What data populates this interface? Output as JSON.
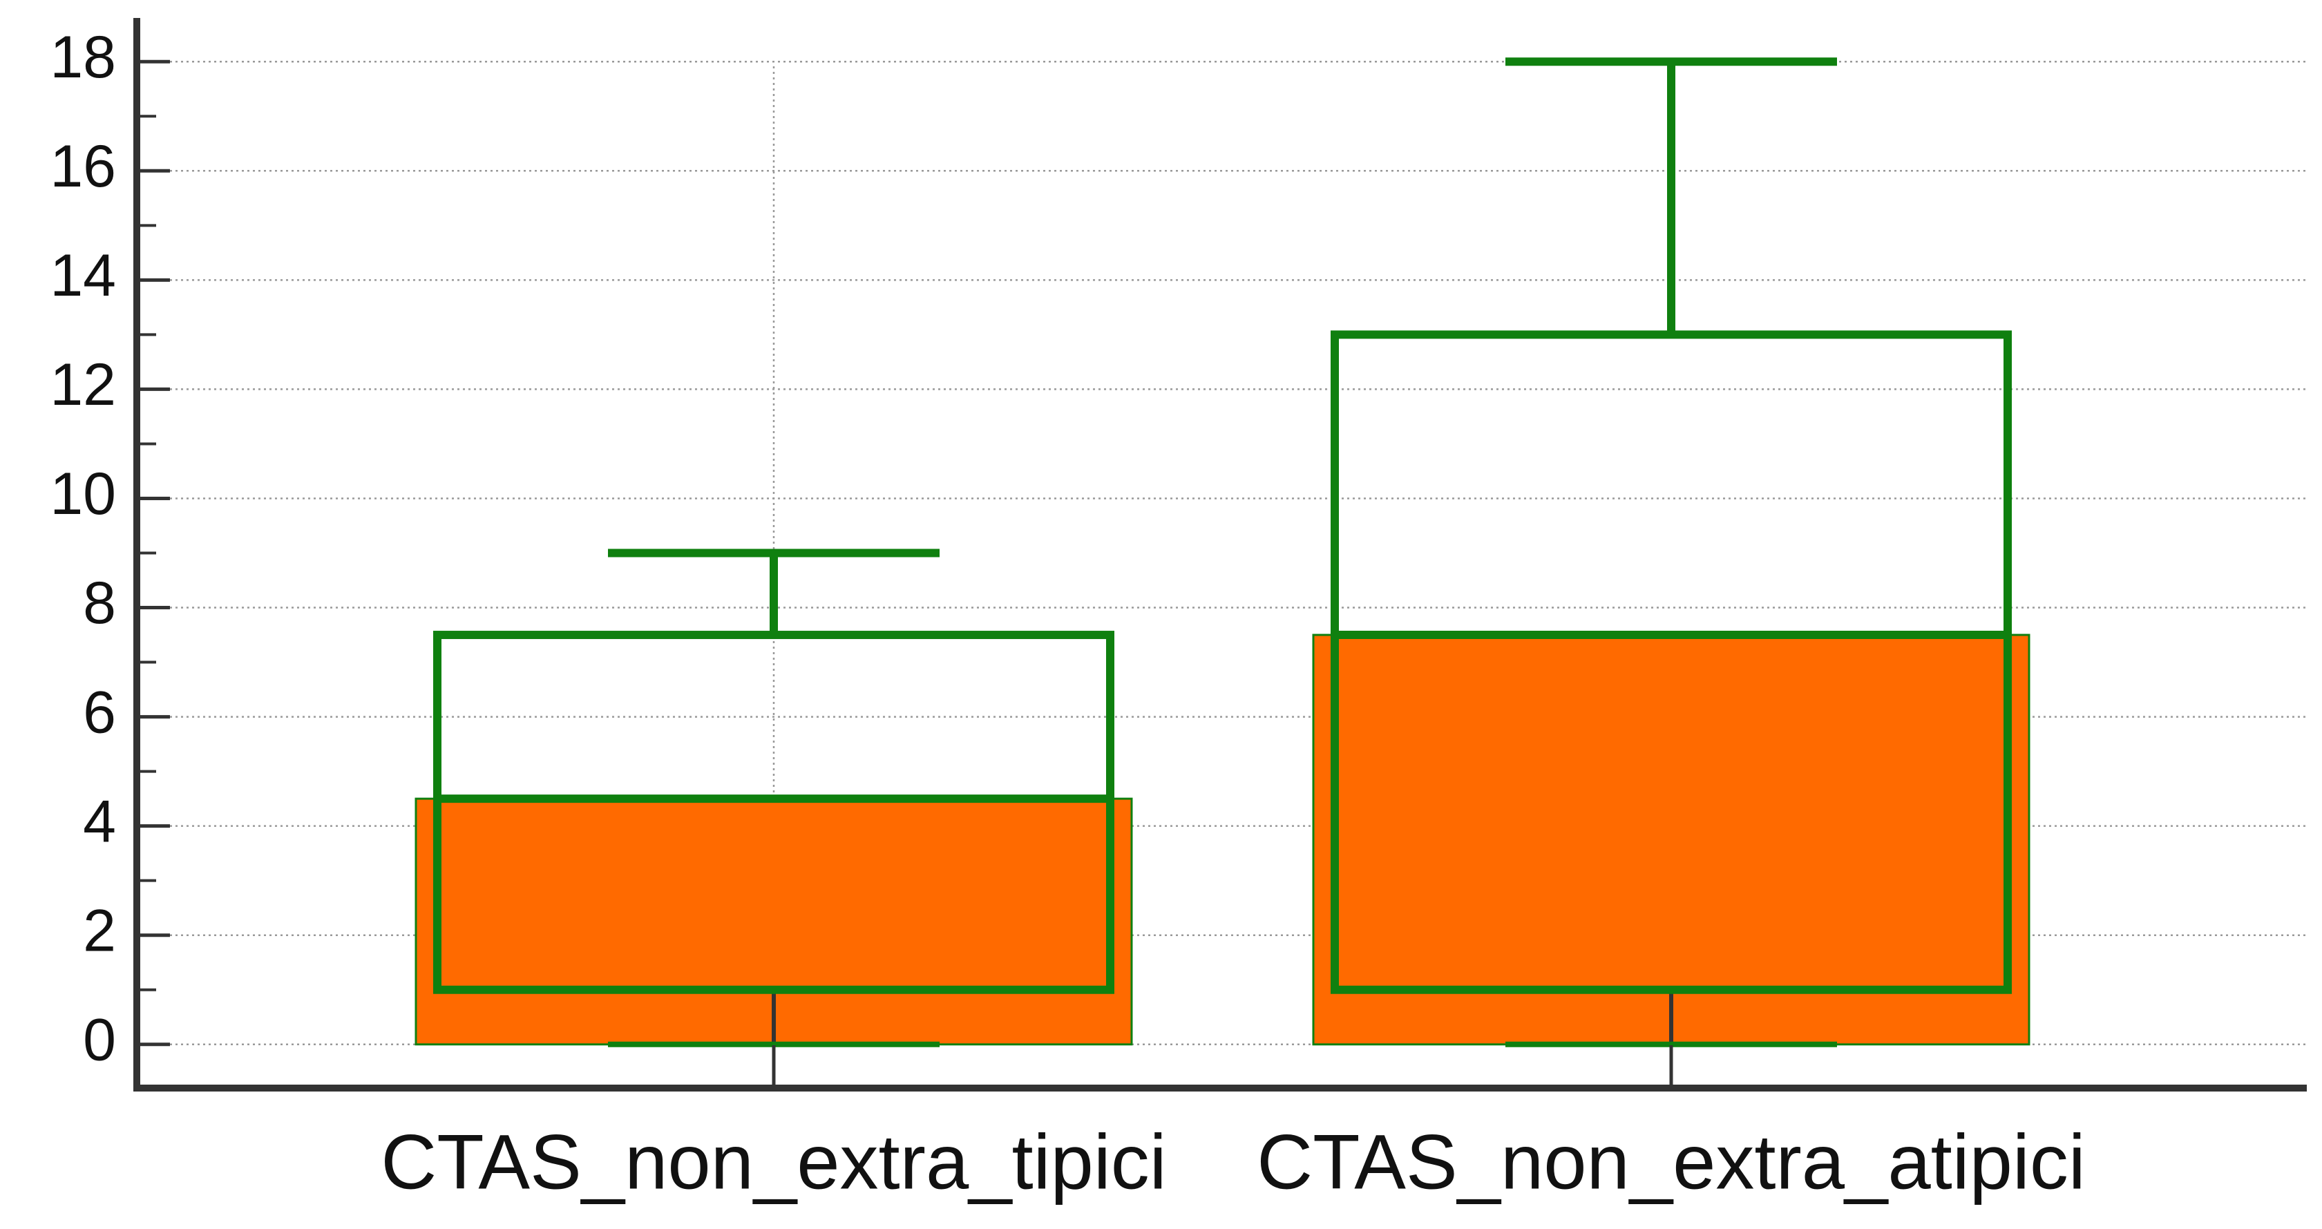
{
  "chart_data": {
    "type": "box",
    "categories": [
      "CTAS_non_extra_tipici",
      "CTAS_non_extra_atipici"
    ],
    "boxes": [
      {
        "min": 0,
        "q1": 1,
        "median": 4.5,
        "q3": 7.5,
        "max": 9
      },
      {
        "min": 0,
        "q1": 1,
        "median": 7.5,
        "q3": 13,
        "max": 18
      }
    ],
    "bar_values": [
      4.5,
      7.5
    ],
    "bar_color": "#ff6a00",
    "box_color": "#0f800f",
    "ylim": [
      -0.8,
      18.8
    ],
    "yticks": [
      0,
      2,
      4,
      6,
      8,
      10,
      12,
      14,
      16,
      18
    ],
    "minor_yticks": [
      1,
      3,
      5,
      7,
      9,
      11,
      13,
      15,
      17
    ],
    "grid": true
  }
}
